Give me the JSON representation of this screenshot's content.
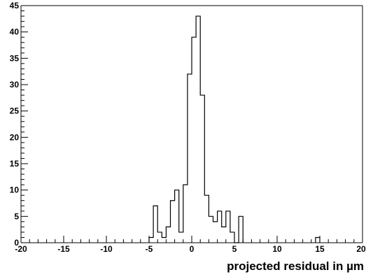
{
  "chart_data": {
    "type": "histogram",
    "title": "",
    "xlabel": "projected residual in µm",
    "ylabel": "",
    "xlim": [
      -20,
      20
    ],
    "ylim": [
      0,
      45
    ],
    "grid": false,
    "x_tick_labels": [
      "-20",
      "-15",
      "-10",
      "-5",
      "0",
      "5",
      "10",
      "15",
      "20"
    ],
    "y_tick_labels": [
      "0",
      "5",
      "10",
      "15",
      "20",
      "25",
      "30",
      "35",
      "40",
      "45"
    ],
    "bin_width": 0.5,
    "bins": [
      {
        "x": -5.0,
        "count": 1
      },
      {
        "x": -4.5,
        "count": 7
      },
      {
        "x": -4.0,
        "count": 2
      },
      {
        "x": -3.5,
        "count": 1
      },
      {
        "x": -3.0,
        "count": 3
      },
      {
        "x": -2.5,
        "count": 8
      },
      {
        "x": -2.0,
        "count": 10
      },
      {
        "x": -1.5,
        "count": 2
      },
      {
        "x": -1.0,
        "count": 11
      },
      {
        "x": -0.5,
        "count": 32
      },
      {
        "x": 0.0,
        "count": 39
      },
      {
        "x": 0.5,
        "count": 43
      },
      {
        "x": 1.0,
        "count": 28
      },
      {
        "x": 1.5,
        "count": 9
      },
      {
        "x": 2.0,
        "count": 5
      },
      {
        "x": 2.5,
        "count": 4
      },
      {
        "x": 3.0,
        "count": 6
      },
      {
        "x": 3.5,
        "count": 3
      },
      {
        "x": 4.0,
        "count": 6
      },
      {
        "x": 4.5,
        "count": 2
      },
      {
        "x": 5.0,
        "count": 0
      },
      {
        "x": 5.5,
        "count": 5
      },
      {
        "x": 14.5,
        "count": 1
      }
    ]
  }
}
